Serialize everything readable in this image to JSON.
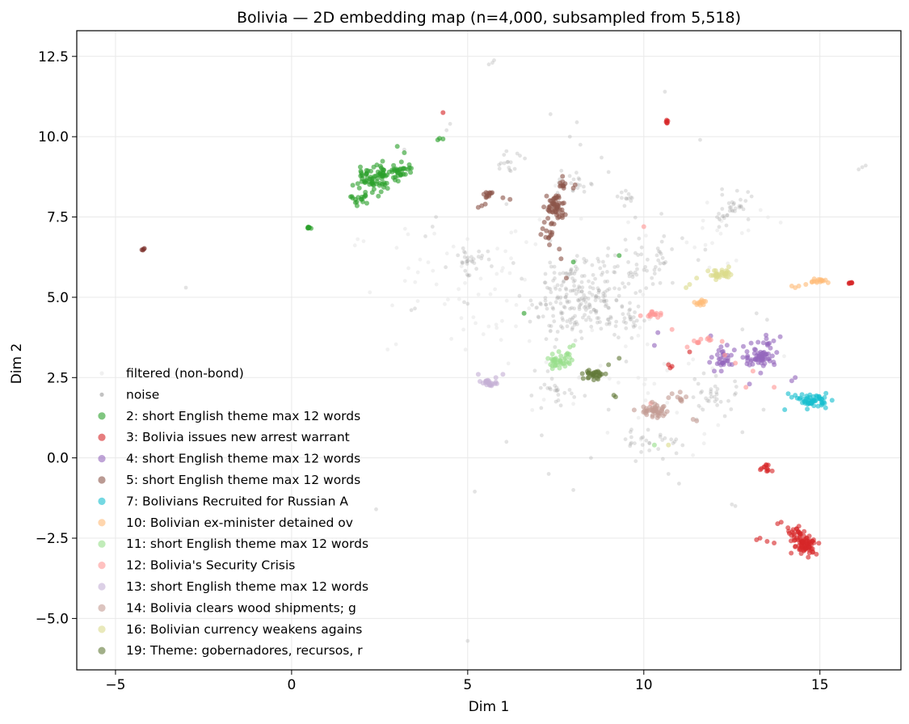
{
  "chart_data": {
    "type": "scatter",
    "title": "Bolivia — 2D embedding map (n=4,000, subsampled from 5,518)",
    "xlabel": "Dim 1",
    "ylabel": "Dim 2",
    "xlim": [
      -6.1,
      17.3
    ],
    "ylim": [
      -6.6,
      13.3
    ],
    "x_ticks": [
      -5,
      0,
      5,
      10,
      15
    ],
    "y_ticks": [
      -5.0,
      -2.5,
      0.0,
      2.5,
      5.0,
      7.5,
      10.0,
      12.5
    ],
    "x_tick_labels": [
      "−5",
      "0",
      "5",
      "10",
      "15"
    ],
    "y_tick_labels": [
      "−5.0",
      "−2.5",
      "0.0",
      "2.5",
      "5.0",
      "7.5",
      "10.0",
      "12.5"
    ],
    "grid": true,
    "legend_position": "lower-left",
    "series": [
      {
        "name": "filtered (non-bond)",
        "color": "#e6e6e6",
        "kind": "filtered",
        "blobs": [
          [
            5.5,
            5.2,
            4.0,
            2.2,
            80
          ],
          [
            10.0,
            2.0,
            3.0,
            2.0,
            40
          ],
          [
            12.5,
            7.0,
            1.5,
            1.2,
            20
          ]
        ]
      },
      {
        "name": "noise",
        "color": "#9a9a9a",
        "kind": "noise",
        "blobs": [
          [
            8.2,
            5.0,
            1.4,
            1.3,
            240
          ],
          [
            5.0,
            6.2,
            0.5,
            0.4,
            30
          ],
          [
            10.0,
            6.0,
            1.2,
            1.0,
            50
          ],
          [
            12.5,
            7.8,
            0.6,
            0.5,
            35
          ],
          [
            8.0,
            8.5,
            0.4,
            0.4,
            20
          ],
          [
            6.2,
            9.2,
            0.5,
            0.4,
            15
          ],
          [
            10.3,
            0.5,
            0.9,
            0.4,
            30
          ],
          [
            12.0,
            2.0,
            0.8,
            0.6,
            30
          ],
          [
            9.6,
            8.1,
            0.3,
            0.2,
            12
          ],
          [
            9.5,
            4.2,
            0.4,
            0.4,
            18
          ],
          [
            7.5,
            2.0,
            0.8,
            0.5,
            25
          ]
        ],
        "points": [
          [
            5.7,
            12.3
          ],
          [
            5.75,
            12.38
          ],
          [
            5.6,
            12.25
          ],
          [
            10.6,
            11.4
          ],
          [
            7.35,
            10.7
          ],
          [
            8.1,
            10.45
          ],
          [
            7.9,
            10.0
          ],
          [
            4.4,
            10.2
          ],
          [
            4.5,
            10.4
          ],
          [
            8.2,
            9.75
          ],
          [
            11.6,
            9.9
          ],
          [
            8.8,
            9.35
          ],
          [
            6.1,
            9.55
          ],
          [
            16.2,
            9.05
          ],
          [
            16.3,
            9.1
          ],
          [
            16.1,
            8.98
          ],
          [
            9.0,
            8.9
          ],
          [
            3.2,
            9.6
          ],
          [
            4.1,
            7.5
          ],
          [
            4.0,
            7.2
          ],
          [
            6.1,
            7.9
          ],
          [
            10.5,
            7.6
          ],
          [
            3.8,
            6.9
          ],
          [
            -3.0,
            5.3
          ],
          [
            3.5,
            4.65
          ],
          [
            3.4,
            4.6
          ],
          [
            5.0,
            4.8
          ],
          [
            4.9,
            4.85
          ],
          [
            11.9,
            2.0
          ],
          [
            12.3,
            1.3
          ],
          [
            6.1,
            0.5
          ],
          [
            7.1,
            0.7
          ],
          [
            8.5,
            0.0
          ],
          [
            7.3,
            -0.5
          ],
          [
            8.0,
            -1.0
          ],
          [
            12.6,
            -1.5
          ],
          [
            12.5,
            -1.45
          ],
          [
            5.2,
            -1.05
          ],
          [
            2.4,
            -1.6
          ],
          [
            5.0,
            -5.7
          ],
          [
            10.7,
            -0.5
          ],
          [
            11.0,
            -0.8
          ],
          [
            12.8,
            4.0
          ],
          [
            13.5,
            4.3
          ],
          [
            13.2,
            4.5
          ],
          [
            9.5,
            3.0
          ],
          [
            9.0,
            1.5
          ],
          [
            11.5,
            1.2
          ],
          [
            12.8,
            0.8
          ],
          [
            13.4,
            1.5
          ]
        ]
      },
      {
        "name": "2: short English theme max 12 words",
        "color": "#2ca02c",
        "kind": "cluster",
        "blobs": [
          [
            2.2,
            8.6,
            0.5,
            0.35,
            55
          ],
          [
            3.1,
            8.9,
            0.35,
            0.3,
            30
          ],
          [
            2.6,
            8.9,
            0.4,
            0.3,
            25
          ],
          [
            1.9,
            8.05,
            0.25,
            0.12,
            15
          ],
          [
            0.5,
            7.17,
            0.08,
            0.03,
            8
          ]
        ],
        "points": [
          [
            4.2,
            9.95
          ],
          [
            4.3,
            9.93
          ],
          [
            4.15,
            9.9
          ],
          [
            3.0,
            9.7
          ],
          [
            3.2,
            9.5
          ],
          [
            8.0,
            6.1
          ],
          [
            9.3,
            6.3
          ],
          [
            6.6,
            4.5
          ]
        ]
      },
      {
        "name": "3: Bolivia issues new arrest warrant",
        "color": "#d62728",
        "kind": "cluster",
        "blobs": [
          [
            14.6,
            -2.7,
            0.35,
            0.3,
            75
          ],
          [
            14.3,
            -2.3,
            0.3,
            0.2,
            20
          ],
          [
            13.5,
            -0.3,
            0.15,
            0.12,
            12
          ],
          [
            15.85,
            5.45,
            0.08,
            0.04,
            8
          ],
          [
            10.65,
            10.48,
            0.05,
            0.07,
            6
          ]
        ],
        "points": [
          [
            13.2,
            -2.55
          ],
          [
            13.3,
            -2.5
          ],
          [
            13.5,
            -2.6
          ],
          [
            13.7,
            -2.65
          ],
          [
            13.9,
            -2.0
          ],
          [
            13.8,
            -2.05
          ],
          [
            14.9,
            -3.0
          ],
          [
            10.7,
            2.9
          ],
          [
            10.8,
            2.85
          ],
          [
            10.75,
            2.8
          ],
          [
            11.3,
            3.3
          ],
          [
            4.3,
            10.75
          ]
        ]
      },
      {
        "name": "4: short English theme max 12 words",
        "color": "#9467bd",
        "kind": "cluster",
        "blobs": [
          [
            13.3,
            3.15,
            0.45,
            0.3,
            60
          ],
          [
            12.3,
            3.1,
            0.4,
            0.3,
            30
          ],
          [
            13.5,
            3.6,
            0.3,
            0.2,
            10
          ]
        ],
        "points": [
          [
            10.3,
            3.5
          ],
          [
            10.4,
            3.9
          ],
          [
            11.9,
            3.8
          ],
          [
            14.3,
            2.5
          ],
          [
            14.2,
            2.4
          ],
          [
            13.0,
            2.3
          ],
          [
            12.0,
            2.7
          ],
          [
            12.2,
            2.7
          ]
        ]
      },
      {
        "name": "5: short English theme max 12 words",
        "color": "#8c564b",
        "kind": "cluster",
        "blobs": [
          [
            7.5,
            7.8,
            0.25,
            0.45,
            55
          ],
          [
            7.7,
            8.5,
            0.1,
            0.25,
            10
          ],
          [
            5.6,
            8.2,
            0.12,
            0.1,
            12
          ],
          [
            7.3,
            7.0,
            0.25,
            0.35,
            15
          ]
        ],
        "points": [
          [
            5.3,
            7.8
          ],
          [
            5.4,
            7.85
          ],
          [
            5.5,
            7.9
          ],
          [
            6.0,
            8.1
          ],
          [
            6.2,
            8.05
          ],
          [
            8.0,
            8.4
          ],
          [
            8.05,
            8.5
          ],
          [
            7.6,
            6.5
          ],
          [
            7.8,
            5.6
          ],
          [
            7.65,
            6.2
          ]
        ]
      },
      {
        "name": "7: Bolivians Recruited for Russian A",
        "color": "#17becf",
        "kind": "cluster",
        "blobs": [
          [
            14.8,
            1.8,
            0.4,
            0.2,
            55
          ]
        ],
        "points": [
          [
            14.1,
            2.0
          ],
          [
            14.3,
            1.95
          ],
          [
            14.0,
            1.5
          ]
        ]
      },
      {
        "name": "10: Bolivian ex-minister detained ov",
        "color": "#ffbb78",
        "kind": "cluster",
        "blobs": [
          [
            15.0,
            5.5,
            0.3,
            0.08,
            15
          ],
          [
            11.6,
            4.85,
            0.2,
            0.08,
            12
          ]
        ],
        "points": [
          [
            14.2,
            5.35
          ],
          [
            14.3,
            5.3
          ],
          [
            14.4,
            5.35
          ],
          [
            14.6,
            5.4
          ]
        ]
      },
      {
        "name": "11: short English theme max 12 words",
        "color": "#98df8a",
        "kind": "cluster",
        "blobs": [
          [
            7.6,
            3.0,
            0.35,
            0.25,
            40
          ]
        ],
        "points": [
          [
            7.9,
            3.45
          ],
          [
            8.0,
            3.5
          ],
          [
            10.3,
            0.4
          ]
        ]
      },
      {
        "name": "12: Bolivia's Security Crisis",
        "color": "#ff9896",
        "kind": "cluster",
        "blobs": [
          [
            10.3,
            4.45,
            0.35,
            0.1,
            15
          ],
          [
            11.6,
            3.6,
            0.35,
            0.15,
            12
          ]
        ],
        "points": [
          [
            10.0,
            7.2
          ],
          [
            10.8,
            4.0
          ],
          [
            12.6,
            2.95
          ],
          [
            13.1,
            2.7
          ],
          [
            12.9,
            2.2
          ],
          [
            13.7,
            2.2
          ],
          [
            10.2,
            1.7
          ],
          [
            12.3,
            3.2
          ]
        ]
      },
      {
        "name": "13: short English theme max 12 words",
        "color": "#c5b0d5",
        "kind": "cluster",
        "blobs": [
          [
            5.6,
            2.35,
            0.2,
            0.1,
            22
          ]
        ],
        "points": [
          [
            6.0,
            2.6
          ],
          [
            5.3,
            2.6
          ],
          [
            5.8,
            2.5
          ]
        ]
      },
      {
        "name": "14: Bolivia clears wood shipments; g",
        "color": "#c49c94",
        "kind": "cluster",
        "blobs": [
          [
            10.3,
            1.45,
            0.45,
            0.2,
            45
          ],
          [
            11.0,
            1.8,
            0.2,
            0.2,
            8
          ]
        ],
        "points": [
          [
            11.4,
            1.2
          ],
          [
            11.5,
            1.15
          ],
          [
            11.2,
            1.9
          ],
          [
            10.8,
            2.0
          ]
        ]
      },
      {
        "name": "16: Bolivian currency weakens agains",
        "color": "#dbdb8d",
        "kind": "cluster",
        "blobs": [
          [
            12.2,
            5.7,
            0.35,
            0.15,
            35
          ]
        ],
        "points": [
          [
            11.2,
            5.3
          ],
          [
            11.3,
            5.4
          ],
          [
            11.5,
            5.6
          ],
          [
            10.7,
            0.4
          ]
        ]
      },
      {
        "name": "19: Theme: gobernadores, recursos, r",
        "color": "#637939",
        "kind": "cluster",
        "blobs": [
          [
            8.6,
            2.6,
            0.3,
            0.15,
            30
          ]
        ],
        "points": [
          [
            9.2,
            1.9
          ],
          [
            9.15,
            1.95
          ],
          [
            9.0,
            2.9
          ],
          [
            9.3,
            3.1
          ],
          [
            8.7,
            2.45
          ]
        ]
      },
      {
        "name": "",
        "color": "#7b2f2a",
        "kind": "unlisted",
        "blobs": [],
        "points": [
          [
            -4.2,
            6.5
          ],
          [
            -4.25,
            6.48
          ],
          [
            -4.18,
            6.52
          ],
          [
            -4.22,
            6.47
          ]
        ]
      }
    ]
  }
}
